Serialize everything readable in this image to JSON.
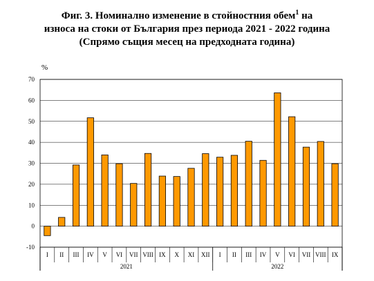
{
  "title": {
    "line1_main": "Фиг. 3. Номинално изменение в стойностния обем",
    "line1_sup": "1",
    "line1_end": " на",
    "line2": "износа на стоки от България през периода 2021 - 2022 година",
    "line3": "(Спрямо същия месец на предходната година)"
  },
  "chart_data": {
    "type": "bar",
    "ylabel": "%",
    "xlabel": "",
    "ylim": [
      -10,
      70
    ],
    "yticks": [
      -10,
      0,
      10,
      20,
      30,
      40,
      50,
      60,
      70
    ],
    "grid": true,
    "categories": [
      "I",
      "II",
      "III",
      "IV",
      "V",
      "VI",
      "VII",
      "VIII",
      "IX",
      "X",
      "XI",
      "XII",
      "I",
      "II",
      "III",
      "IV",
      "V",
      "VI",
      "VII",
      "VIII",
      "IX"
    ],
    "values": [
      -4.5,
      4.2,
      29.2,
      51.7,
      34.0,
      29.8,
      20.4,
      34.7,
      23.9,
      23.7,
      27.6,
      34.6,
      32.9,
      33.8,
      40.5,
      31.4,
      63.6,
      52.2,
      37.7,
      40.4,
      29.8
    ],
    "year_groups": [
      {
        "label": "2021",
        "start": 0,
        "count": 12
      },
      {
        "label": "2022",
        "start": 12,
        "count": 9
      }
    ],
    "bar_color": "#ff9900",
    "bar_border": "#000000",
    "grid_color": "#000000"
  }
}
